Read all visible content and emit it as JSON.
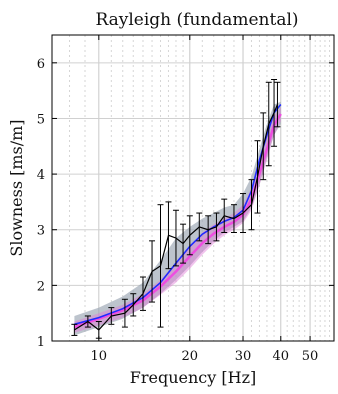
{
  "chart_data": {
    "type": "line",
    "title": "Rayleigh (fundamental)",
    "xlabel": "Frequency [Hz]",
    "ylabel": "Slowness [ms/m]",
    "x_scale": "log",
    "xlim": [
      7,
      60
    ],
    "ylim": [
      1,
      6.5
    ],
    "grid": true,
    "x_ticks": [
      10,
      20,
      30,
      40,
      50
    ],
    "x_tick_labels": [
      "10",
      "20",
      "30",
      "40",
      "50"
    ],
    "y_ticks": [
      1,
      2,
      3,
      4,
      5,
      6
    ],
    "y_tick_labels": [
      "1",
      "2",
      "3",
      "4",
      "5",
      "6"
    ],
    "colors": {
      "measured": "#000000",
      "ensemble_band": "#9aa4b2",
      "pink_band": "#e07ad8",
      "blue_line": "#1f2aff",
      "pink_line": "#ee4de0"
    },
    "series": [
      {
        "key": "measured",
        "x": [
          8.3,
          9.2,
          10.0,
          11.0,
          12.2,
          13.0,
          14.0,
          15.0,
          16.0,
          17.0,
          18.0,
          19.0,
          20.0,
          21.5,
          23.0,
          24.5,
          26.0,
          28.0,
          30.0,
          32.0,
          33.5,
          35.0,
          36.5,
          38.0,
          39.0
        ],
        "y": [
          1.2,
          1.35,
          1.2,
          1.45,
          1.5,
          1.65,
          1.85,
          2.25,
          2.35,
          2.9,
          2.85,
          2.75,
          2.9,
          3.05,
          3.0,
          3.05,
          3.25,
          3.2,
          3.3,
          3.45,
          3.95,
          4.5,
          4.9,
          5.1,
          5.25
        ],
        "err": [
          0.1,
          0.1,
          0.15,
          0.15,
          0.25,
          0.2,
          0.3,
          0.55,
          1.1,
          0.6,
          0.5,
          0.35,
          0.35,
          0.25,
          0.25,
          0.25,
          0.3,
          0.25,
          0.35,
          0.45,
          0.65,
          0.6,
          0.75,
          0.6,
          0.4
        ]
      },
      {
        "key": "ensemble_band",
        "x": [
          8.3,
          10,
          12,
          14,
          16,
          18,
          20,
          22,
          24,
          26,
          28,
          30,
          32,
          34,
          36,
          38,
          40
        ],
        "y_low": [
          1.1,
          1.25,
          1.4,
          1.6,
          1.85,
          2.1,
          2.35,
          2.6,
          2.8,
          2.95,
          3.05,
          3.15,
          3.4,
          3.8,
          4.3,
          4.7,
          4.9
        ],
        "y_high": [
          1.45,
          1.6,
          1.8,
          2.05,
          2.45,
          2.85,
          3.05,
          3.2,
          3.3,
          3.4,
          3.45,
          3.65,
          3.95,
          4.45,
          4.9,
          5.25,
          5.3
        ]
      },
      {
        "key": "pink_band",
        "x": [
          8.3,
          10,
          12,
          14,
          16,
          18,
          20,
          22,
          24,
          26,
          28,
          30,
          32,
          34,
          36,
          38,
          40
        ],
        "y_low": [
          1.15,
          1.28,
          1.42,
          1.6,
          1.83,
          2.05,
          2.3,
          2.55,
          2.75,
          2.9,
          3.0,
          3.12,
          3.35,
          3.8,
          4.25,
          4.7,
          4.95
        ],
        "y_high": [
          1.35,
          1.5,
          1.65,
          1.85,
          2.1,
          2.4,
          2.7,
          2.95,
          3.1,
          3.2,
          3.3,
          3.45,
          3.75,
          4.2,
          4.65,
          5.05,
          5.2
        ]
      },
      {
        "key": "blue_line",
        "x": [
          8.3,
          10,
          12,
          14,
          16,
          18,
          20,
          22,
          24,
          26,
          28,
          30,
          32,
          34,
          36,
          38,
          40
        ],
        "y": [
          1.3,
          1.42,
          1.58,
          1.78,
          2.05,
          2.4,
          2.7,
          2.92,
          3.05,
          3.15,
          3.22,
          3.35,
          3.7,
          4.25,
          4.7,
          5.1,
          5.25
        ]
      },
      {
        "key": "pink_line",
        "x": [
          8.3,
          10,
          12,
          14,
          16,
          18,
          20,
          22,
          24,
          26,
          28,
          30,
          32,
          34,
          36,
          38,
          40
        ],
        "y": [
          1.25,
          1.4,
          1.55,
          1.73,
          1.98,
          2.25,
          2.52,
          2.76,
          2.93,
          3.05,
          3.14,
          3.27,
          3.55,
          4.0,
          4.45,
          4.88,
          5.08
        ]
      }
    ]
  }
}
